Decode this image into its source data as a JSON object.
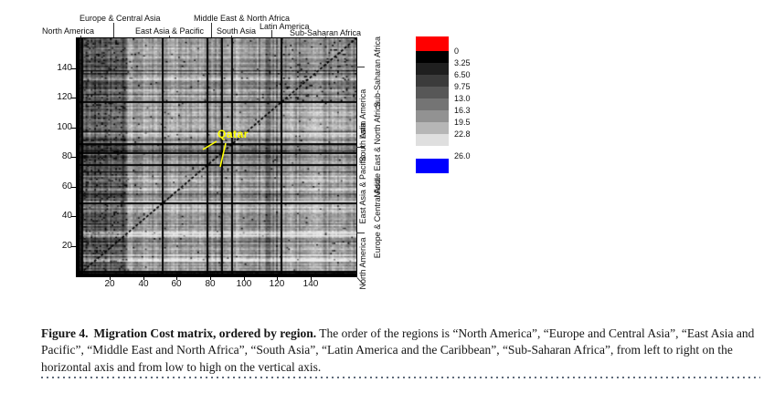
{
  "figure": {
    "regions": [
      {
        "name": "North America"
      },
      {
        "name": "Europe & Central Asia"
      },
      {
        "name": "East Asia & Pacific"
      },
      {
        "name": "Middle East & North Africa"
      },
      {
        "name": "South Asia"
      },
      {
        "name": "Latin America"
      },
      {
        "name": "Sub-Saharan Africa"
      }
    ],
    "axes": {
      "x_ticks": [
        "20",
        "40",
        "60",
        "80",
        "100",
        "120",
        "140"
      ],
      "y_ticks": [
        "140",
        "120",
        "100",
        "80",
        "60",
        "40",
        "20"
      ]
    },
    "annotation": {
      "label": "Qatar",
      "color": "#ffff00"
    },
    "legend": {
      "over_color": "#ff0000",
      "under_color": "#0000ff",
      "gray_steps": [
        "#000000",
        "#1f1f1f",
        "#3b3b3b",
        "#575757",
        "#747474",
        "#929292",
        "#b6b6b6",
        "#dfdfdf"
      ],
      "tick_labels": [
        "0",
        "3.25",
        "6.50",
        "9.75",
        "13.0",
        "16.3",
        "19.5",
        "22.8",
        "26.0"
      ]
    }
  },
  "caption": {
    "label": "Figure 4.",
    "title": "Migration Cost matrix, ordered by region.",
    "body": "The order of the regions is “North America”, “Europe and Central Asia”, “East Asia and Pacific”, “Middle East and North Africa”, “South Asia”, “Latin America and the Caribbean”, “Sub-Saharan Africa”, from left to right on the horizontal axis and from low to high on the vertical axis."
  },
  "chart_data": {
    "type": "heatmap",
    "title": "Migration Cost matrix, ordered by region",
    "x_range": [
      0,
      160
    ],
    "y_range": [
      0,
      160
    ],
    "x_tick_values": [
      20,
      40,
      60,
      80,
      100,
      120,
      140
    ],
    "y_tick_values": [
      20,
      40,
      60,
      80,
      100,
      120,
      140
    ],
    "regions": [
      {
        "name": "North America",
        "start": 0,
        "end": 3
      },
      {
        "name": "Europe & Central Asia",
        "start": 3,
        "end": 49
      },
      {
        "name": "East Asia & Pacific",
        "start": 49,
        "end": 75
      },
      {
        "name": "Middle East & North Africa",
        "start": 75,
        "end": 83
      },
      {
        "name": "South Asia",
        "start": 83,
        "end": 89
      },
      {
        "name": "Latin America",
        "start": 89,
        "end": 117
      },
      {
        "name": "Sub-Saharan Africa",
        "start": 117,
        "end": 160
      }
    ],
    "boundaries": [
      3,
      49,
      75,
      83,
      89,
      117
    ],
    "colorbar": {
      "values": [
        0,
        3.25,
        6.5,
        9.75,
        13.0,
        16.3,
        19.5,
        22.8,
        26.0
      ],
      "step_colors": [
        "#000000",
        "#1f1f1f",
        "#3b3b3b",
        "#575757",
        "#747474",
        "#929292",
        "#b6b6b6",
        "#dfdfdf"
      ],
      "over_color": "#ff0000",
      "under_color": "#0000ff",
      "mapping": "low cost = dark, high cost = light"
    },
    "annotations": [
      {
        "label": "Qatar",
        "x": 80,
        "y": 80,
        "color": "#ffff00"
      }
    ],
    "diagonal": "dark dashed main diagonal from bottom-left to top-right (zero cost to self)",
    "render_hints": {
      "seed": 42,
      "dark_column_band": [
        3,
        29
      ],
      "dark_row_band": [
        83,
        89
      ],
      "speckled_block_start": 117
    }
  }
}
